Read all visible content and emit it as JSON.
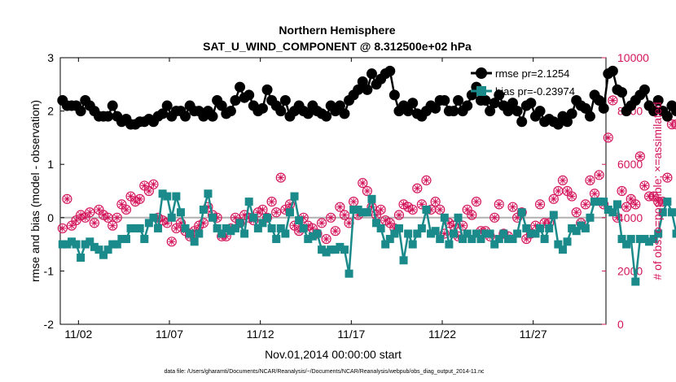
{
  "chart_data": {
    "type": "line",
    "title": "Northern Hemisphere",
    "subtitle": "SAT_U_WIND_COMPONENT @ 8.312500e+02 hPa",
    "xlabel": "Nov.01,2014 00:00:00 start",
    "ylabel": "rmse and bias (model - observation)",
    "ylabel_right": "# of obs: o=possible; ×=assimilated",
    "footnote": "data file: /Users/gharamti/Documents/NCAR/Reanalysis/~/Documents/NCAR/Reanalysis/webpub/obs_diag_output_2014-11.nc",
    "x_tick_labels": [
      "11/02",
      "11/07",
      "11/12",
      "11/17",
      "11/22",
      "11/27"
    ],
    "x_tick_days": [
      2,
      7,
      12,
      17,
      22,
      27
    ],
    "xlim_days": [
      1.0,
      31.0
    ],
    "ylim": [
      -2,
      3
    ],
    "y_ticks": [
      -2,
      -1,
      0,
      1,
      2,
      3
    ],
    "ylim_right": [
      0,
      10000
    ],
    "y_ticks_right": [
      0,
      2000,
      4000,
      6000,
      8000,
      10000
    ],
    "legend": {
      "position": "top-right",
      "entries": [
        "rmse pr=2.1254",
        "bias pr=-0.23974"
      ]
    },
    "x_step_days": 0.25,
    "x_start_day": 1.125,
    "series": [
      {
        "name": "rmse pr=2.1254",
        "color": "#000000",
        "marker": "circle",
        "values": [
          2.2,
          2.1,
          2.1,
          2.1,
          2.0,
          2.2,
          2.1,
          2.0,
          1.9,
          1.9,
          1.9,
          2.1,
          1.9,
          1.8,
          1.85,
          1.75,
          1.75,
          1.8,
          1.8,
          1.85,
          1.8,
          1.9,
          1.95,
          2.1,
          1.9,
          2.0,
          2.0,
          1.9,
          2.1,
          2.0,
          2.0,
          1.9,
          2.0,
          1.9,
          2.2,
          2.1,
          1.95,
          2.0,
          2.2,
          2.45,
          2.25,
          2.3,
          2.1,
          2.0,
          2.05,
          2.4,
          2.2,
          2.1,
          2.0,
          2.2,
          1.9,
          2.0,
          2.1,
          2.0,
          1.95,
          2.1,
          2.0,
          1.95,
          1.9,
          2.1,
          2.0,
          2.1,
          1.95,
          2.2,
          2.3,
          2.4,
          2.55,
          2.4,
          2.7,
          2.5,
          2.6,
          2.7,
          2.75,
          2.3,
          2.0,
          2.1,
          2.0,
          2.15,
          1.95,
          1.9,
          2.0,
          2.1,
          2.05,
          2.2,
          2.2,
          2.0,
          2.0,
          2.2,
          2.0,
          2.1,
          2.3,
          2.45,
          2.2,
          2.2,
          2.0,
          2.15,
          2.3,
          2.1,
          2.0,
          2.15,
          2.0,
          1.8,
          2.1,
          2.15,
          1.9,
          2.0,
          1.8,
          1.85,
          1.8,
          1.75,
          1.9,
          1.8,
          1.95,
          2.2,
          2.1,
          2.05,
          1.9,
          2.3,
          2.2,
          2.05,
          2.7,
          2.75,
          2.4,
          2.35,
          2.0,
          2.1,
          2.2,
          2.3,
          2.4,
          2.1,
          2.0,
          2.2,
          2.0,
          1.9,
          2.1,
          2.0,
          2.0,
          1.95,
          2.3,
          2.0,
          2.4,
          2.3,
          2.25,
          2.1,
          2.0,
          2.4
        ]
      },
      {
        "name": "bias pr=-0.23974",
        "color": "#1a8a8a",
        "marker": "square",
        "values": [
          -0.5,
          -0.5,
          -0.45,
          -0.5,
          -0.75,
          -0.5,
          -0.45,
          -0.55,
          -0.6,
          -0.7,
          -0.6,
          -0.5,
          -0.5,
          -0.4,
          -0.4,
          -0.2,
          -0.2,
          -0.2,
          -0.4,
          -0.1,
          0.0,
          -0.2,
          0.45,
          0.4,
          0.0,
          0.4,
          0.1,
          -0.2,
          -0.3,
          -0.45,
          -0.3,
          0.15,
          0.45,
          0.0,
          -0.2,
          -0.3,
          -0.2,
          -0.25,
          -0.2,
          -0.1,
          -0.3,
          0.3,
          0.0,
          -0.2,
          -0.1,
          0.0,
          -0.2,
          -0.4,
          -0.2,
          -0.3,
          0.1,
          0.4,
          -0.05,
          -0.2,
          -0.4,
          -0.35,
          -0.3,
          -0.6,
          -0.65,
          -0.6,
          -0.6,
          -0.55,
          -0.6,
          -1.05,
          0.15,
          0.15,
          0.1,
          0.1,
          0.35,
          -0.1,
          -0.2,
          -0.5,
          -0.4,
          -0.3,
          -0.2,
          -0.8,
          -0.3,
          -0.5,
          -0.3,
          -0.2,
          0.15,
          -0.3,
          -0.25,
          -0.4,
          0.0,
          -0.5,
          -0.3,
          0.0,
          -0.4,
          -0.3,
          -0.4,
          -0.3,
          -0.4,
          -0.3,
          -0.3,
          -0.5,
          -0.4,
          -0.3,
          -0.4,
          -0.4,
          -0.3,
          0.1,
          -0.2,
          -0.3,
          -0.3,
          -0.2,
          -0.4,
          -0.2,
          0.05,
          -0.5,
          -0.6,
          -0.45,
          -0.2,
          -0.25,
          -0.15,
          -0.2,
          0.0,
          0.3,
          0.3,
          0.3,
          0.15,
          0.1,
          0.25,
          -0.4,
          -0.5,
          -0.4,
          -1.2,
          -0.4,
          -0.4,
          -0.45,
          -0.4,
          -0.3,
          0.1,
          0.3,
          0.1,
          -0.3,
          -0.4,
          -0.3,
          -0.3,
          0.0,
          -0.1,
          -0.6,
          -0.35,
          -0.4,
          0.0,
          -0.1,
          -0.3,
          -0.45
        ]
      },
      {
        "name": "# of obs possible",
        "color": "#d4145a",
        "marker": "circle-open",
        "axis": "right",
        "values": [
          3600,
          4700,
          3700,
          3900,
          4100,
          4000,
          4200,
          3800,
          4300,
          4100,
          4000,
          3700,
          4000,
          4500,
          4300,
          4800,
          4600,
          4700,
          5200,
          5000,
          5250,
          4000,
          3900,
          3800,
          3100,
          3600,
          3800,
          3500,
          3300,
          3500,
          3700,
          3800,
          4400,
          4100,
          4000,
          3300,
          3300,
          3600,
          4000,
          3800,
          4100,
          4000,
          3900,
          4200,
          4300,
          4000,
          4600,
          4200,
          5500,
          4300,
          4500,
          3700,
          3500,
          4000,
          3700,
          3600,
          3400,
          3800,
          3200,
          4000,
          3500,
          4400,
          4100,
          3800,
          4600,
          4100,
          5300,
          5000,
          4400,
          4100,
          4300,
          3900,
          3800,
          3600,
          4100,
          4500,
          4400,
          4300,
          5100,
          4500,
          5400,
          4300,
          4600,
          4300,
          3400,
          3800,
          3700,
          3300,
          3700,
          4300,
          4100,
          4600,
          3500,
          3500,
          3300,
          4000,
          4500,
          3400,
          3300,
          4400,
          4000,
          4200,
          3200,
          3400,
          3700,
          4500,
          3800,
          3800,
          4700,
          5000,
          5400,
          5000,
          4800,
          4200,
          3800,
          4500,
          5400,
          4900,
          5600,
          4500,
          7000,
          8400,
          4000,
          5000,
          4400,
          4700,
          4500,
          6300,
          5200,
          4800,
          4800,
          4600,
          4600,
          5500,
          7500,
          7500,
          7900,
          6900,
          6800,
          5900,
          4700,
          4500,
          4500,
          3700,
          4000,
          5600
        ]
      },
      {
        "name": "# of obs assimilated",
        "color": "#d4145a",
        "marker": "x",
        "axis": "right",
        "values": [
          3600,
          4700,
          3700,
          3900,
          4100,
          4000,
          4200,
          3800,
          4300,
          4100,
          4000,
          3700,
          4000,
          4500,
          4300,
          4800,
          4600,
          4700,
          5200,
          5000,
          5250,
          4000,
          3900,
          3800,
          3100,
          3600,
          3800,
          3500,
          3300,
          3500,
          3700,
          3800,
          4400,
          4100,
          4000,
          3300,
          3300,
          3600,
          4000,
          3800,
          4100,
          4000,
          3900,
          4200,
          4300,
          4000,
          4600,
          4200,
          5500,
          4300,
          4500,
          3700,
          3500,
          4000,
          3700,
          3600,
          3400,
          3800,
          3200,
          4000,
          3500,
          4400,
          4100,
          3800,
          4600,
          4100,
          5300,
          5000,
          4400,
          4100,
          4300,
          3900,
          3800,
          3600,
          4100,
          4500,
          4400,
          4300,
          5100,
          4500,
          5400,
          4300,
          4600,
          4300,
          3400,
          3800,
          3700,
          3300,
          3700,
          4300,
          4100,
          4600,
          3500,
          3500,
          3300,
          4000,
          4500,
          3400,
          3300,
          4400,
          4000,
          4200,
          3200,
          3400,
          3700,
          4500,
          3800,
          3800,
          4700,
          5000,
          5400,
          5000,
          4800,
          4200,
          3800,
          4500,
          5400,
          4900,
          5600,
          4500,
          7000,
          8400,
          4000,
          5000,
          4400,
          4700,
          4500,
          6300,
          5200,
          4800,
          4800,
          4600,
          4600,
          5500,
          7500,
          7500,
          7900,
          6900,
          6800,
          5900,
          4700,
          4500,
          4500,
          3700,
          4000,
          5600
        ]
      }
    ]
  }
}
